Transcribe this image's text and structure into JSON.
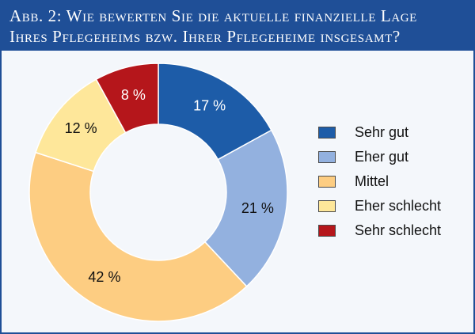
{
  "header": {
    "title_line1": "Abb. 2: Wie bewerten Sie die aktuelle finanzielle Lage",
    "title_line2": "Ihres Pflegeheims bzw. Ihrer Pflegeheime insgesamt?"
  },
  "chart_data": {
    "type": "pie",
    "donut": true,
    "legend_position": "right",
    "slices": [
      {
        "name": "Sehr gut",
        "value": 17,
        "label": "17 %",
        "color": "#1d5ca8",
        "label_color": "#ffffff"
      },
      {
        "name": "Eher gut",
        "value": 21,
        "label": "21 %",
        "color": "#93b1df",
        "label_color": "#111111"
      },
      {
        "name": "Mittel",
        "value": 42,
        "label": "42 %",
        "color": "#fdcd82",
        "label_color": "#111111"
      },
      {
        "name": "Eher schlecht",
        "value": 12,
        "label": "12 %",
        "color": "#fee79a",
        "label_color": "#111111"
      },
      {
        "name": "Sehr schlecht",
        "value": 8,
        "label": "8 %",
        "color": "#b5161b",
        "label_color": "#ffffff"
      }
    ]
  }
}
